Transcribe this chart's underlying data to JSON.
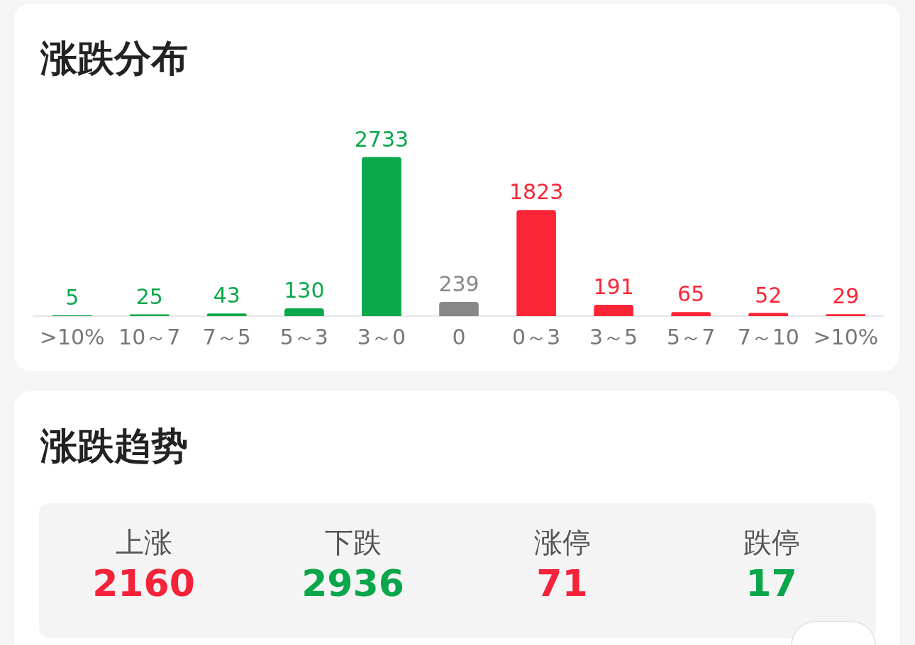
{
  "chart_data": [
    {
      "type": "bar",
      "title": "涨跌分布",
      "categories": [
        ">10%",
        "10～7",
        "7～5",
        "5～3",
        "3～0",
        "0",
        "0～3",
        "3～5",
        "5～7",
        "7～10",
        ">10%"
      ],
      "values": [
        5,
        25,
        43,
        130,
        2733,
        239,
        1823,
        191,
        65,
        52,
        29
      ],
      "colors": [
        "#0aa84a",
        "#0aa84a",
        "#0aa84a",
        "#0aa84a",
        "#0aa84a",
        "#888888",
        "#fa2636",
        "#fa2636",
        "#fa2636",
        "#fa2636",
        "#fa2636"
      ],
      "data_labels": true
    },
    {
      "type": "other",
      "title": "涨跌趋势",
      "categories": [
        "上涨",
        "下跌",
        "涨停",
        "跌停"
      ],
      "values": [
        2160,
        2936,
        71,
        17
      ],
      "data_labels": true
    }
  ]
}
